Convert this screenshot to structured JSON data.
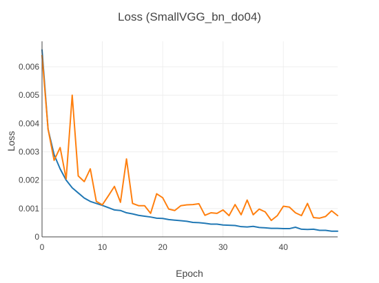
{
  "chart_data": {
    "type": "line",
    "title": "Loss (SmallVGG_bn_do04)",
    "xlabel": "Epoch",
    "ylabel": "Loss",
    "xlim": [
      0,
      49
    ],
    "ylim": [
      0,
      0.0069
    ],
    "grid": true,
    "legend": "none",
    "x_ticks": [
      0,
      10,
      20,
      30,
      40
    ],
    "x_tick_labels": [
      "0",
      "10",
      "20",
      "30",
      "40"
    ],
    "y_ticks": [
      0,
      0.001,
      0.002,
      0.003,
      0.004,
      0.005,
      0.006
    ],
    "y_tick_labels": [
      "0",
      "0.001",
      "0.002",
      "0.003",
      "0.004",
      "0.005",
      "0.006"
    ],
    "x": [
      0,
      1,
      2,
      3,
      4,
      5,
      6,
      7,
      8,
      9,
      10,
      11,
      12,
      13,
      14,
      15,
      16,
      17,
      18,
      19,
      20,
      21,
      22,
      23,
      24,
      25,
      26,
      27,
      28,
      29,
      30,
      31,
      32,
      33,
      34,
      35,
      36,
      37,
      38,
      39,
      40,
      41,
      42,
      43,
      44,
      45,
      46,
      47,
      48,
      49
    ],
    "series": [
      {
        "color": "#1f77b4",
        "values": [
          0.0066,
          0.0038,
          0.0029,
          0.0024,
          0.002,
          0.00173,
          0.00155,
          0.00137,
          0.00125,
          0.00118,
          0.00111,
          0.00103,
          0.00095,
          0.00093,
          0.00085,
          0.00081,
          0.00076,
          0.00073,
          0.0007,
          0.00066,
          0.00065,
          0.00061,
          0.00059,
          0.00057,
          0.00055,
          0.00051,
          0.0005,
          0.00048,
          0.00045,
          0.00045,
          0.00042,
          0.00041,
          0.0004,
          0.00036,
          0.00035,
          0.00037,
          0.00033,
          0.00032,
          0.0003,
          0.0003,
          0.00029,
          0.00029,
          0.00034,
          0.00027,
          0.00026,
          0.00027,
          0.00023,
          0.00023,
          0.0002,
          0.0002
        ]
      },
      {
        "color": "#ff7f0e",
        "values": [
          0.0064,
          0.0038,
          0.0027,
          0.00315,
          0.00205,
          0.005,
          0.00215,
          0.00195,
          0.0024,
          0.00125,
          0.00113,
          0.00145,
          0.00178,
          0.00122,
          0.00275,
          0.00118,
          0.0011,
          0.0011,
          0.00083,
          0.00152,
          0.00138,
          0.00098,
          0.00093,
          0.0011,
          0.00113,
          0.00114,
          0.00117,
          0.00076,
          0.00085,
          0.00083,
          0.00095,
          0.00075,
          0.00114,
          0.00078,
          0.0013,
          0.00078,
          0.00098,
          0.00088,
          0.00058,
          0.00075,
          0.00108,
          0.00105,
          0.00085,
          0.00075,
          0.00118,
          0.00068,
          0.00066,
          0.00072,
          0.00092,
          0.00075
        ]
      }
    ]
  }
}
